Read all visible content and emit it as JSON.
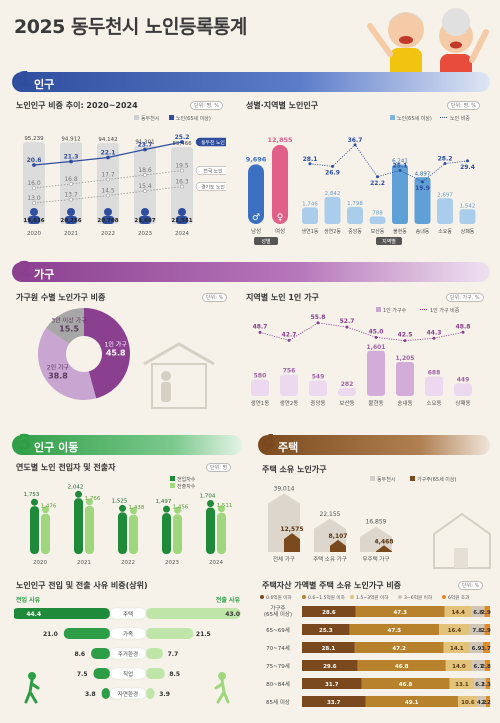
{
  "title": "2025 동두천시 노인등록통계",
  "sections": {
    "s1": {
      "num": "1",
      "label": "인구"
    },
    "s2": {
      "num": "2",
      "label": "가구"
    },
    "s3": {
      "num": "3",
      "label": "인구 이동"
    },
    "s4": {
      "num": "4",
      "label": "주택"
    }
  },
  "colors": {
    "blue": "#2f4e9e",
    "purple": "#8a3f8f",
    "green": "#2e9e46",
    "brown": "#7a4a1e"
  },
  "chart_data": [
    {
      "id": "elderly_trend",
      "type": "bar",
      "title": "노인인구 비중 추이: 2020~2024",
      "unit": "단위: 명, %",
      "legend": [
        "동두천시",
        "노인(65세 이상)"
      ],
      "categories": [
        "2020",
        "2021",
        "2022",
        "2023",
        "2024"
      ],
      "series": [
        {
          "name": "동두천시",
          "values": [
            95239,
            94912,
            94142,
            91301,
            89466
          ]
        },
        {
          "name": "노인(65세 이상)",
          "values": [
            19636,
            20256,
            20708,
            21607,
            22551
          ]
        }
      ],
      "lines": [
        {
          "name": "동두천 노인",
          "values": [
            20.6,
            21.3,
            22.1,
            23.7,
            25.2
          ]
        },
        {
          "name": "전국 노인",
          "values": [
            16.0,
            16.8,
            17.7,
            18.6,
            19.5
          ]
        },
        {
          "name": "경기도 노인",
          "values": [
            13.0,
            13.7,
            14.5,
            15.4,
            16.3
          ]
        }
      ]
    },
    {
      "id": "gender_region",
      "type": "bar",
      "title": "성별·지역별 노인인구",
      "unit": "단위: 명, %",
      "legend": [
        "노인(65세 이상)",
        "노인 비중"
      ],
      "gender": {
        "categories": [
          "남성",
          "여성"
        ],
        "values": [
          9696,
          12855
        ],
        "group_label": "성별"
      },
      "region": {
        "categories": [
          "생연1동",
          "생연2동",
          "중앙동",
          "보산동",
          "불현동",
          "송내동",
          "소요동",
          "상패동"
        ],
        "values": [
          1746,
          2842,
          1798,
          788,
          6241,
          4897,
          2697,
          1542
        ],
        "ratio": [
          28.1,
          26.9,
          36.7,
          22.2,
          25.1,
          19.9,
          28.2,
          29.4
        ],
        "group_label": "지역별"
      }
    },
    {
      "id": "household_size",
      "type": "pie",
      "title": "가구원 수별 노인가구 비중",
      "unit": "단위: %",
      "slices": [
        {
          "label": "1인 가구",
          "value": 45.8,
          "color": "#8a3f8f"
        },
        {
          "label": "2인 가구",
          "value": 38.8,
          "color": "#c9a6d2"
        },
        {
          "label": "3인 이상 가구",
          "value": 15.5,
          "color": "#a7a7a7"
        }
      ]
    },
    {
      "id": "single_region",
      "type": "bar",
      "title": "지역별 노인 1인 가구",
      "unit": "단위: 가구, %",
      "legend": [
        "1인 가구수",
        "1인 가구 비중"
      ],
      "categories": [
        "생연1동",
        "생연2동",
        "중앙동",
        "보산동",
        "불현동",
        "송내동",
        "소요동",
        "상패동"
      ],
      "values": [
        580,
        756,
        549,
        282,
        1601,
        1205,
        688,
        449
      ],
      "ratio": [
        48.7,
        42.7,
        55.8,
        52.7,
        45.0,
        42.5,
        44.3,
        48.8
      ]
    },
    {
      "id": "migration",
      "type": "bar",
      "title": "연도별 노인 전입자 및 전출자",
      "unit": "단위: 명",
      "legend": [
        "전입자수",
        "전출자수"
      ],
      "categories": [
        "2020",
        "2021",
        "2022",
        "2023",
        "2024"
      ],
      "series": [
        {
          "name": "전입자수",
          "values": [
            1753,
            2042,
            1525,
            1497,
            1704
          ]
        },
        {
          "name": "전출자수",
          "values": [
            1476,
            1766,
            1438,
            1456,
            1511
          ]
        }
      ]
    },
    {
      "id": "housing_own",
      "type": "bar",
      "title": "주택 소유 노인가구",
      "unit": "",
      "legend": [
        "동두천시",
        "가구주(65세 이상)"
      ],
      "categories": [
        "전체 가구",
        "주택 소유 가구",
        "무주택 가구"
      ],
      "series": [
        {
          "name": "동두천시",
          "values": [
            39014,
            22155,
            16859
          ]
        },
        {
          "name": "가구주(65세 이상)",
          "values": [
            12575,
            8107,
            4468
          ]
        }
      ]
    },
    {
      "id": "migration_reason",
      "type": "bar",
      "title": "노인인구 전입 및 전출 사유 비중(상위)",
      "left_label": "전입 사유",
      "right_label": "전출 사유",
      "categories": [
        "주택",
        "가족",
        "주거환경",
        "직업",
        "자연환경"
      ],
      "in_values": [
        44.4,
        21.0,
        8.6,
        7.5,
        3.8
      ],
      "out_values": [
        43.0,
        21.5,
        7.7,
        8.5,
        3.9
      ]
    },
    {
      "id": "housing_value",
      "type": "bar",
      "title": "주택자산 가액별 주택 소유 노인가구 비중",
      "unit": "단위: %",
      "legend": [
        "0.6억원 이하",
        "0.6~1.5억원 이하",
        "1.5~3억원 이하",
        "3~6억원 이하",
        "6억원 초과"
      ],
      "colors": [
        "#7a4a1e",
        "#b8822c",
        "#e3c27a",
        "#cfc6b8",
        "#e08b2a"
      ],
      "categories": [
        "가구주\n(65세 이상)",
        "65~69세",
        "70~74세",
        "75~79세",
        "80~84세",
        "85세 이상"
      ],
      "rows": [
        [
          28.6,
          47.3,
          14.4,
          6.8,
          2.9
        ],
        [
          25.3,
          47.5,
          16.4,
          7.8,
          2.9
        ],
        [
          28.1,
          47.2,
          14.1,
          6.9,
          3.7
        ],
        [
          29.6,
          46.8,
          14.0,
          6.7,
          2.8
        ],
        [
          31.7,
          46.8,
          13.1,
          6.1,
          2.3
        ],
        [
          33.7,
          49.1,
          10.6,
          4.2,
          2.2
        ]
      ]
    }
  ]
}
